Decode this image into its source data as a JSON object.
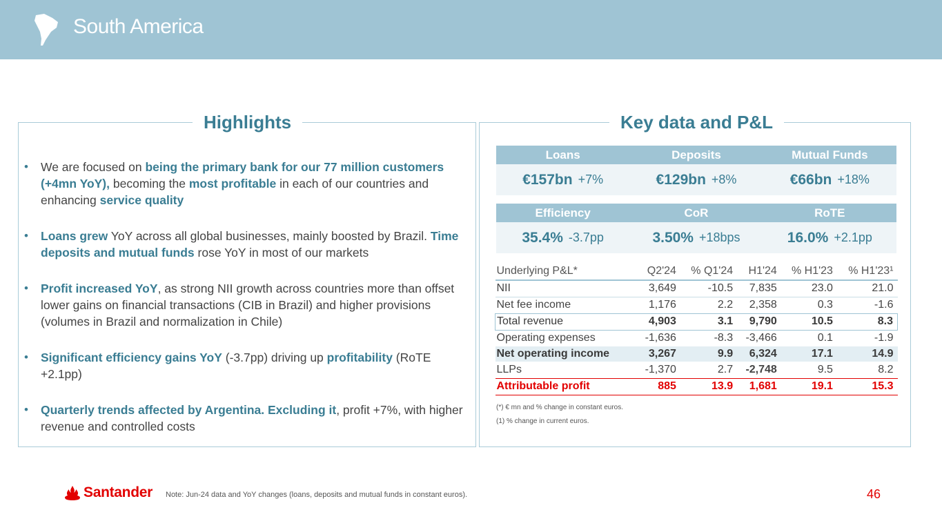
{
  "header": {
    "title": "South America"
  },
  "highlights": {
    "title": "Highlights",
    "b1": {
      "t1": "We are focused on ",
      "h1": "being the primary bank for our 77 million customers (+4mn YoY),",
      "t2": " becoming the ",
      "h2": "most profitable",
      "t3": " in each of our countries and enhancing ",
      "h3": "service quality"
    },
    "b2": {
      "h1": "Loans grew",
      "t1": " YoY across all global businesses, mainly boosted by Brazil. ",
      "h2": "Time deposits and mutual funds",
      "t2": " rose YoY in most of our markets"
    },
    "b3": {
      "h1": "Profit increased YoY",
      "t1": ", as strong NII growth across countries more than offset lower gains on financial transactions (CIB in Brazil) and higher provisions (volumes in Brazil and normalization in Chile)"
    },
    "b4": {
      "h1": "Significant efficiency gains YoY",
      "t1": " (-3.7pp) driving up ",
      "h2": "profitability",
      "t2": " (RoTE +2.1pp)"
    },
    "b5": {
      "h1": "Quarterly trends affected by Argentina. Excluding it",
      "t1": ", profit +7%, with higher revenue and controlled costs"
    }
  },
  "keydata": {
    "title": "Key data and P&L",
    "row1": [
      {
        "label": "Loans",
        "value": "€157bn",
        "change": "+7%"
      },
      {
        "label": "Deposits",
        "value": "€129bn",
        "change": "+8%"
      },
      {
        "label": "Mutual Funds",
        "value": "€66bn",
        "change": "+18%"
      }
    ],
    "row2": [
      {
        "label": "Efficiency",
        "value": "35.4%",
        "change": "-3.7pp"
      },
      {
        "label": "CoR",
        "value": "3.50%",
        "change": "+18bps"
      },
      {
        "label": "RoTE",
        "value": "16.0%",
        "change": "+2.1pp"
      }
    ]
  },
  "pl": {
    "headers": [
      "Underlying P&L*",
      "Q2'24",
      "% Q1'24",
      "H1'24",
      "% H1'23",
      "% H1'23¹"
    ],
    "rows": [
      [
        "NII",
        "3,649",
        "-10.5",
        "7,835",
        "23.0",
        "21.0"
      ],
      [
        "Net fee income",
        "1,176",
        "2.2",
        "2,358",
        "0.3",
        "-1.6"
      ],
      [
        "Total revenue",
        "4,903",
        "3.1",
        "9,790",
        "10.5",
        "8.3"
      ],
      [
        "Operating expenses",
        "-1,636",
        "-8.3",
        "-3,466",
        "0.1",
        "-1.9"
      ],
      [
        "Net operating income",
        "3,267",
        "9.9",
        "6,324",
        "17.1",
        "14.9"
      ],
      [
        "LLPs",
        "-1,370",
        "2.7",
        "-2,748",
        "9.5",
        "8.2"
      ],
      [
        "Attributable profit",
        "885",
        "13.9",
        "1,681",
        "19.1",
        "15.3"
      ]
    ],
    "footnote1": "(*) € mn and % change in constant euros.",
    "footnote2": "(1)  % change in current euros."
  },
  "footer": {
    "brand": "Santander",
    "note": "Note: Jun-24 data and YoY changes (loans, deposits and mutual funds in constant euros).",
    "page": "46"
  },
  "colors": {
    "header_bg": "#9fc4d4",
    "accent": "#3a7d93",
    "brand_red": "#e20000"
  }
}
